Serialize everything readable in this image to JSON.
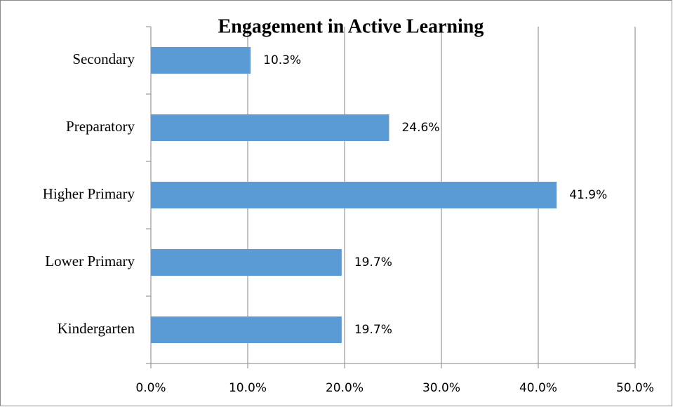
{
  "chart_data": {
    "type": "hbar",
    "title": "Engagement in Active Learning",
    "categories": [
      "Secondary",
      "Preparatory",
      "Higher Primary",
      "Lower Primary",
      "Kindergarten"
    ],
    "values": [
      10.3,
      24.6,
      41.9,
      19.7,
      19.7
    ],
    "value_labels": [
      "10.3%",
      "24.6%",
      "41.9%",
      "19.7%",
      "19.7%"
    ],
    "color": "#5b9bd5",
    "xlim": [
      0,
      50
    ],
    "xticks": [
      {
        "value": 0,
        "label": "0.0%"
      },
      {
        "value": 10,
        "label": "10.0%"
      },
      {
        "value": 20,
        "label": "20.0%"
      },
      {
        "value": 30,
        "label": "30.0%"
      },
      {
        "value": 40,
        "label": "40.0%"
      },
      {
        "value": 50,
        "label": "50.0%"
      }
    ],
    "grid": true
  }
}
